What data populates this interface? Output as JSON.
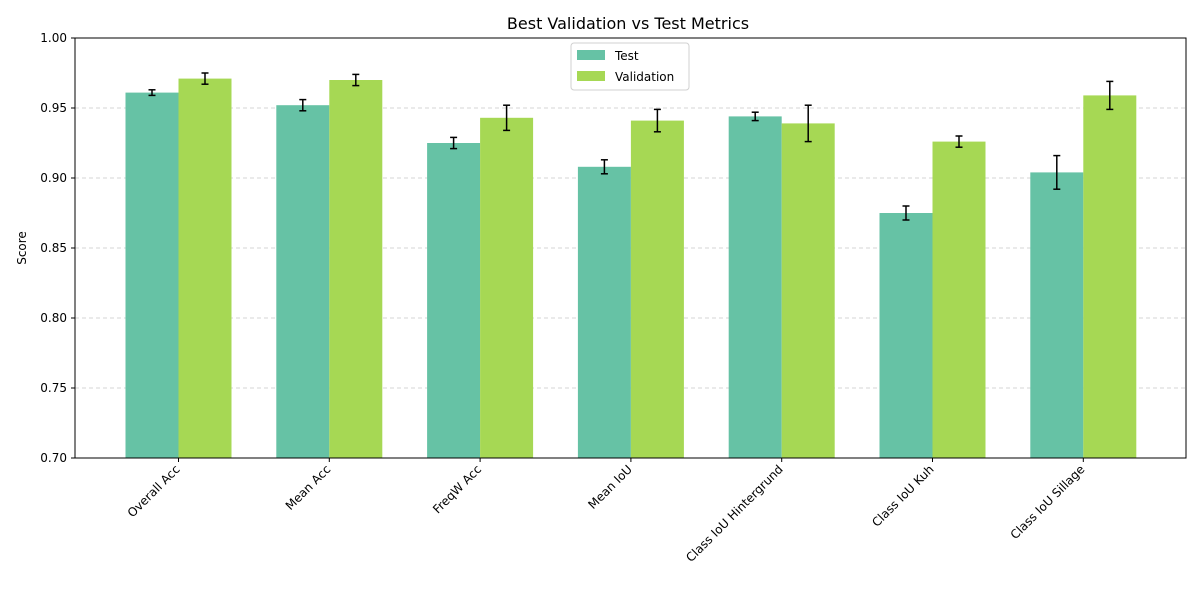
{
  "chart_data": {
    "type": "bar",
    "title": "Best Validation vs Test Metrics",
    "xlabel": "",
    "ylabel": "Score",
    "ylim": [
      0.7,
      1.0
    ],
    "yticks": [
      "0.70",
      "0.75",
      "0.80",
      "0.85",
      "0.90",
      "0.95",
      "1.00"
    ],
    "grid": "horizontal dashed",
    "legend_position": "upper center",
    "categories": [
      "Overall Acc",
      "Mean Acc",
      "FreqW Acc",
      "Mean IoU",
      "Class IoU Hintergrund",
      "Class IoU Kuh",
      "Class IoU Sillage"
    ],
    "series": [
      {
        "name": "Test",
        "color": "#66c2a5",
        "values": [
          0.961,
          0.952,
          0.925,
          0.908,
          0.944,
          0.875,
          0.904
        ],
        "errors": [
          0.002,
          0.004,
          0.004,
          0.005,
          0.003,
          0.005,
          0.012
        ]
      },
      {
        "name": "Validation",
        "color": "#a6d854",
        "values": [
          0.971,
          0.97,
          0.943,
          0.941,
          0.939,
          0.926,
          0.959
        ],
        "errors": [
          0.004,
          0.004,
          0.009,
          0.008,
          0.013,
          0.004,
          0.01
        ]
      }
    ]
  }
}
